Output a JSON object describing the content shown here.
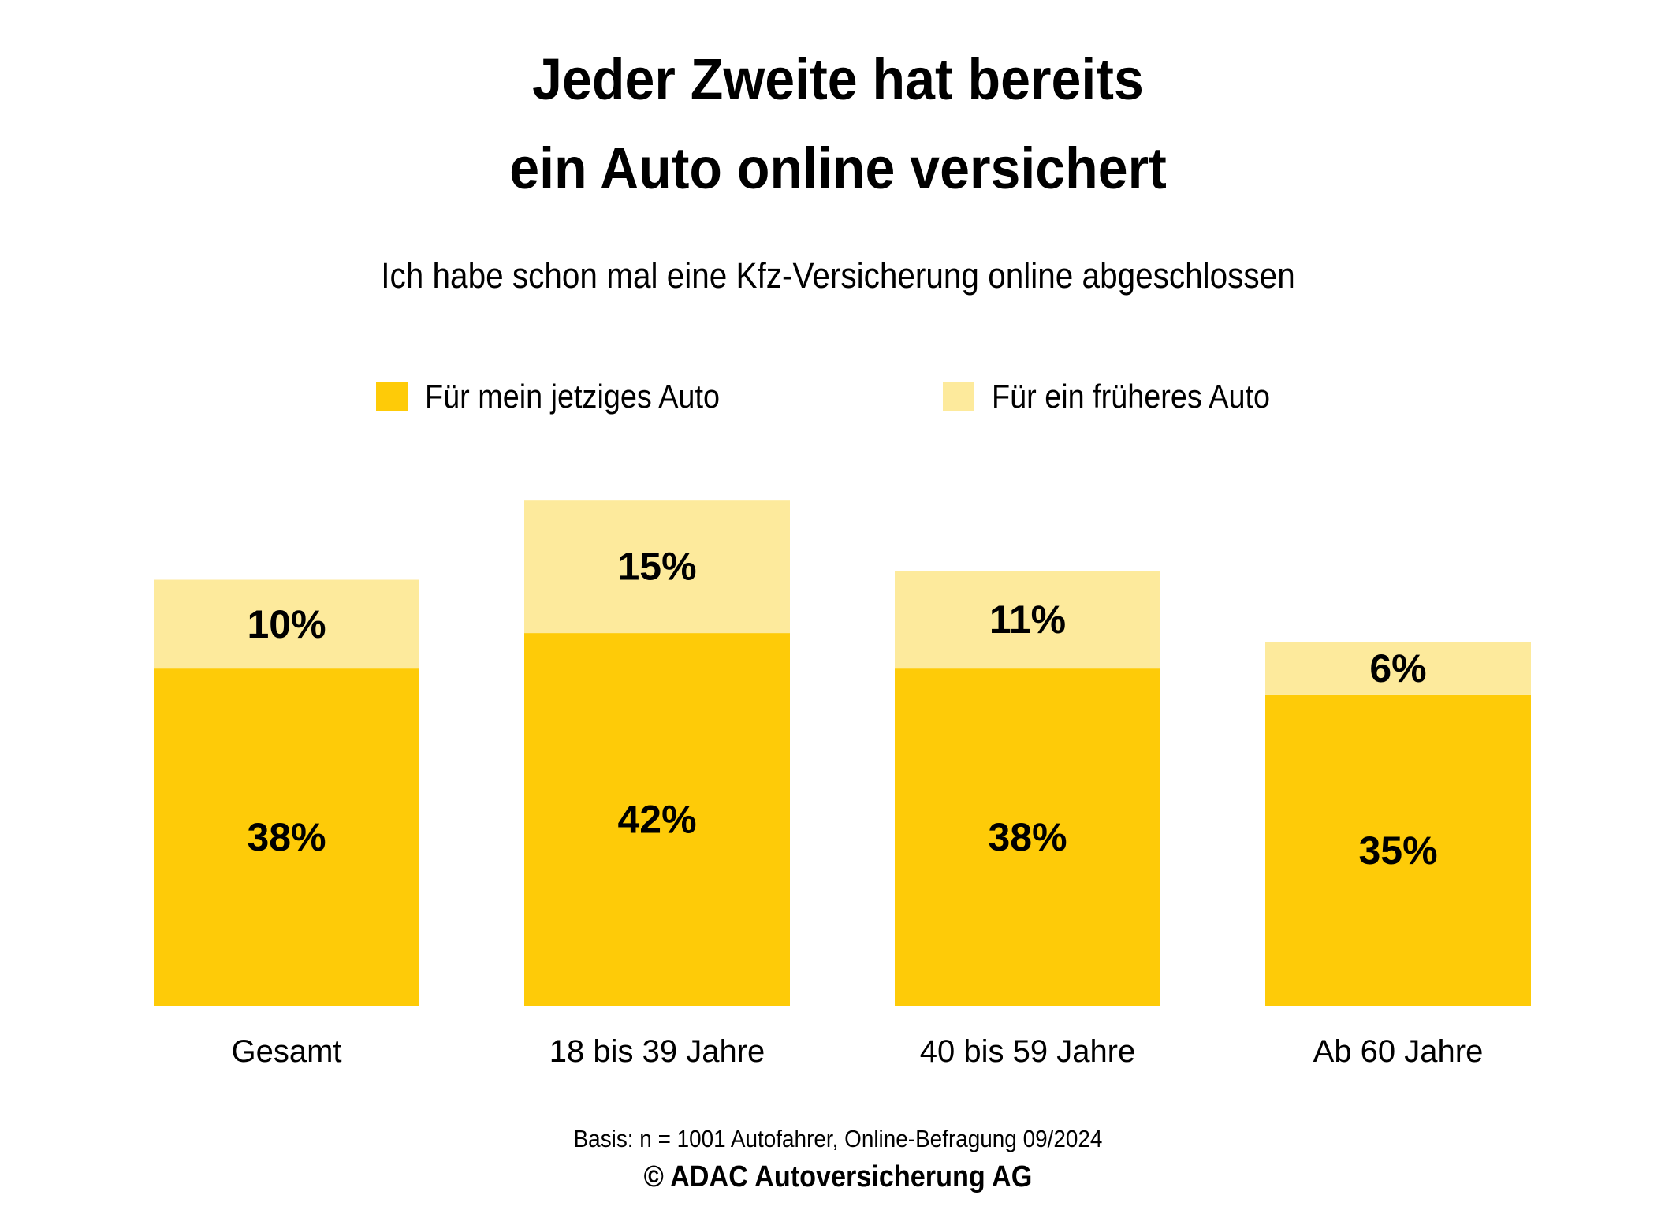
{
  "chart_data": {
    "type": "bar",
    "stacked": true,
    "title": "Jeder Zweite hat bereits ein Auto online versichert",
    "title_lines": [
      "Jeder Zweite hat bereits",
      "ein Auto online versichert"
    ],
    "subtitle": "Ich habe schon mal eine Kfz-Versicherung online abgeschlossen",
    "categories": [
      "Gesamt",
      "18 bis 39 Jahre",
      "40 bis 59 Jahre",
      "Ab 60 Jahre"
    ],
    "series": [
      {
        "name": "Für mein jetziges Auto",
        "color": "#FECB08",
        "values": [
          38,
          42,
          38,
          35
        ],
        "labels": [
          "38%",
          "42%",
          "38%",
          "35%"
        ]
      },
      {
        "name": "Für ein früheres Auto",
        "color": "#FDEA9C",
        "values": [
          10,
          15,
          11,
          6
        ],
        "labels": [
          "10%",
          "15%",
          "11%",
          "6%"
        ]
      }
    ],
    "unit": "%",
    "xlabel": "",
    "ylabel": "",
    "ylim": [
      0,
      57
    ],
    "grid": false,
    "legend_position": "top-center"
  },
  "footer": {
    "basis": "Basis: n = 1001 Autofahrer, Online-Befragung 09/2024",
    "copyright": "© ADAC Autoversicherung AG"
  }
}
